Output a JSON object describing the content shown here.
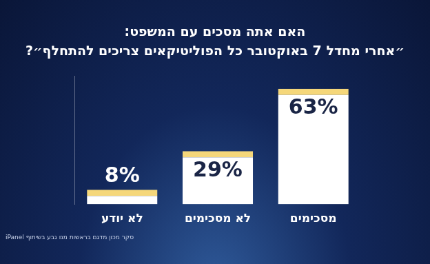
{
  "chart_data": {
    "type": "bar",
    "title": "האם אתה מסכים עם המשפט:",
    "subtitle": "״אחרי מחדל 7 באוקטובר כל הפוליטיקאים צריכים להתחלף״?",
    "source": "סקר מכון מדגם בראשות מנו גבע בשיתוף iPanel",
    "categories": [
      "לא יודע",
      "לא מסכימים",
      "מסכימים"
    ],
    "values": [
      8,
      29,
      63
    ],
    "value_labels": [
      "8%",
      "29%",
      "63%"
    ],
    "color": "#ffffff",
    "ylim": [
      0,
      70
    ],
    "grid": false,
    "data_labels": true,
    "tick_labels": "x"
  }
}
